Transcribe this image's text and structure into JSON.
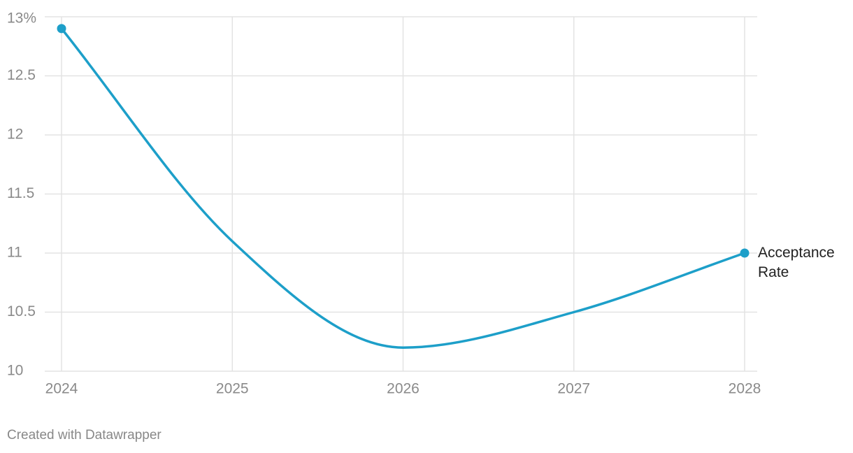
{
  "chart_data": {
    "type": "line",
    "x": [
      2024,
      2025,
      2026,
      2027,
      2028
    ],
    "series": [
      {
        "name": "Acceptance Rate",
        "color": "#1d9fc9",
        "values": [
          12.9,
          11.1,
          10.2,
          10.5,
          11.0
        ]
      }
    ],
    "xlim": [
      2024,
      2028
    ],
    "xticks": [
      2024,
      2025,
      2026,
      2027,
      2028
    ],
    "ylim": [
      10,
      13
    ],
    "yticks": [
      10,
      10.5,
      11,
      11.5,
      12,
      12.5,
      {
        "value": 13,
        "label": "13%"
      }
    ],
    "grid": true,
    "footer": "Created with Datawrapper"
  }
}
